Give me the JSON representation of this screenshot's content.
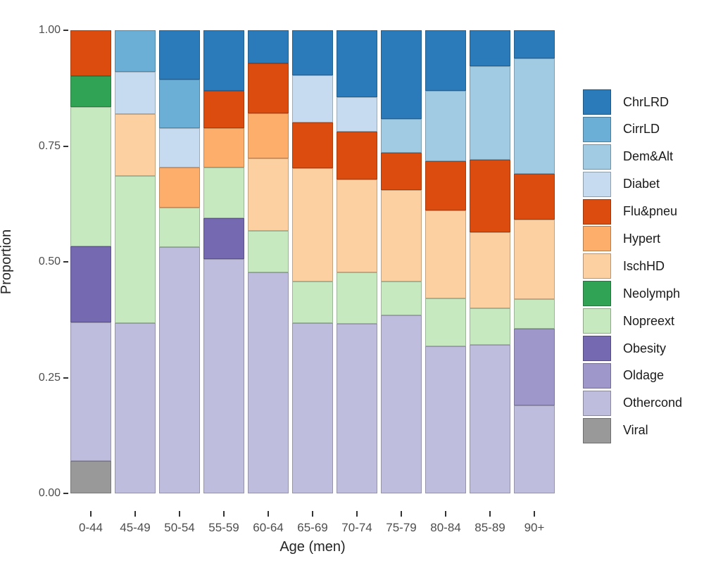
{
  "chart_data": {
    "type": "bar",
    "stacked": true,
    "orientation": "vertical",
    "title": "",
    "xlabel": "Age (men)",
    "ylabel": "Proportion",
    "ylim": [
      0,
      1
    ],
    "grid": false,
    "legend_position": "right",
    "ytick_labels": [
      "1.00",
      "0.75",
      "0.50",
      "0.25",
      "0.00"
    ],
    "ytick_values": [
      1.0,
      0.75,
      0.5,
      0.25,
      0.0
    ],
    "categories": [
      "0-44",
      "45-49",
      "50-54",
      "55-59",
      "60-64",
      "65-69",
      "70-74",
      "75-79",
      "80-84",
      "85-89",
      "90+"
    ],
    "series": [
      {
        "name": "ChrLRD",
        "color": "#2b7bba",
        "values": [
          0,
          0,
          0.106,
          0.131,
          0.071,
          0.097,
          0.145,
          0.191,
          0.131,
          0.078,
          0.061
        ]
      },
      {
        "name": "CirrLD",
        "color": "#6baed6",
        "values": [
          0,
          0.09,
          0.105,
          0,
          0,
          0,
          0,
          0,
          0,
          0,
          0
        ]
      },
      {
        "name": "Dem&Alt",
        "color": "#a1cbe3",
        "values": [
          0,
          0,
          0,
          0,
          0,
          0,
          0,
          0.073,
          0.152,
          0.202,
          0.249
        ]
      },
      {
        "name": "Diabet",
        "color": "#c6dbef",
        "values": [
          0,
          0.091,
          0.085,
          0,
          0,
          0.102,
          0.074,
          0,
          0,
          0,
          0
        ]
      },
      {
        "name": "Flu&pneu",
        "color": "#dc4c0e",
        "values": [
          0.099,
          0,
          0,
          0.08,
          0.109,
          0.099,
          0.103,
          0.081,
          0.106,
          0.156,
          0.099
        ]
      },
      {
        "name": "Hypert",
        "color": "#fdae6b",
        "values": [
          0,
          0,
          0.087,
          0.085,
          0.097,
          0,
          0,
          0,
          0,
          0,
          0
        ]
      },
      {
        "name": "IschHD",
        "color": "#fdd0a2",
        "values": [
          0,
          0.134,
          0,
          0,
          0.156,
          0.245,
          0.201,
          0.197,
          0.19,
          0.164,
          0.171
        ]
      },
      {
        "name": "Neolymph",
        "color": "#31a354",
        "values": [
          0.067,
          0,
          0,
          0,
          0,
          0,
          0,
          0,
          0,
          0,
          0
        ]
      },
      {
        "name": "Nopreext",
        "color": "#c7e9c0",
        "values": [
          0.301,
          0.317,
          0.085,
          0.11,
          0.09,
          0.089,
          0.111,
          0.074,
          0.103,
          0.08,
          0.064
        ]
      },
      {
        "name": "Obesity",
        "color": "#7569b1",
        "values": [
          0.164,
          0,
          0,
          0.088,
          0,
          0,
          0,
          0,
          0,
          0,
          0
        ]
      },
      {
        "name": "Oldage",
        "color": "#9e97ca",
        "values": [
          0,
          0,
          0,
          0,
          0,
          0,
          0,
          0,
          0,
          0,
          0.166
        ]
      },
      {
        "name": "Othercond",
        "color": "#bfbddd",
        "values": [
          0.299,
          0.368,
          0.532,
          0.506,
          0.477,
          0.368,
          0.366,
          0.384,
          0.318,
          0.32,
          0.19
        ]
      },
      {
        "name": "Viral",
        "color": "#999999",
        "values": [
          0.07,
          0,
          0,
          0,
          0,
          0,
          0,
          0,
          0,
          0,
          0
        ]
      }
    ],
    "axis_style": {
      "tick_color": "#333333",
      "tick_label_color": "#4d4d4d",
      "title_color": "#262626"
    }
  }
}
